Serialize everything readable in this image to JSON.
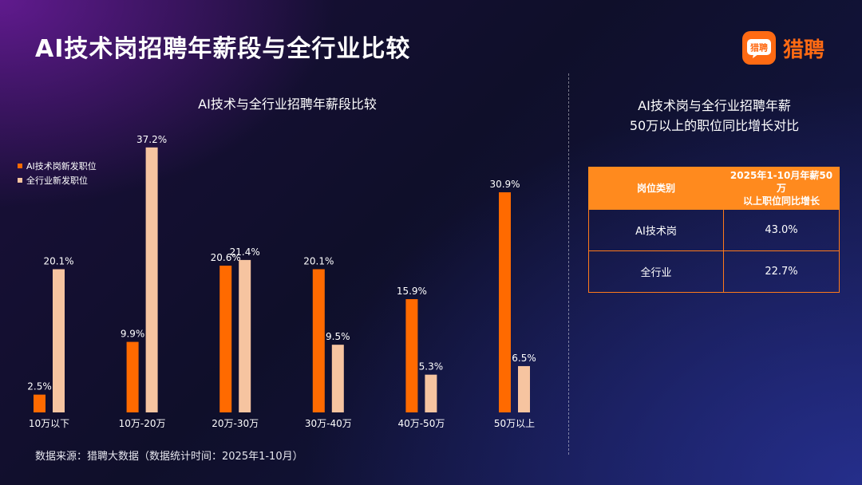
{
  "title": "AI技术岗招聘年薪段与全行业比较",
  "logo": {
    "text": "猎聘",
    "mark_text": "猎聘"
  },
  "source": "数据来源：猎聘大数据（数据统计时间：2025年1-10月）",
  "colors": {
    "ai": "#ff6a00",
    "all": "#f6c4a0",
    "accent": "#ff8a1e"
  },
  "chart_data": {
    "type": "bar",
    "title": "AI技术与全行业招聘年薪段比较",
    "categories": [
      "10万以下",
      "10万-20万",
      "20万-30万",
      "30万-40万",
      "40万-50万",
      "50万以上"
    ],
    "series": [
      {
        "name": "AI技术岗新发职位",
        "values": [
          2.5,
          9.9,
          20.6,
          20.1,
          15.9,
          30.9
        ],
        "labels": [
          "2.5%",
          "9.9%",
          "20.6%",
          "20.1%",
          "15.9%",
          "30.9%"
        ]
      },
      {
        "name": "全行业新发职位",
        "values": [
          20.1,
          37.2,
          21.4,
          9.5,
          5.3,
          6.5
        ],
        "labels": [
          "20.1%",
          "37.2%",
          "21.4%",
          "9.5%",
          "5.3%",
          "6.5%"
        ]
      }
    ],
    "unit": "%",
    "legend": "top-left",
    "grid": false
  },
  "comparison": {
    "title_lines": [
      "AI技术岗与全行业招聘年薪",
      "50万以上的职位同比增长对比"
    ],
    "headers": [
      "岗位类别",
      "2025年1-10月年薪50万",
      "以上职位同比增长"
    ],
    "rows": [
      {
        "category": "AI技术岗",
        "value": "43.0%"
      },
      {
        "category": "全行业",
        "value": "22.7%"
      }
    ]
  }
}
